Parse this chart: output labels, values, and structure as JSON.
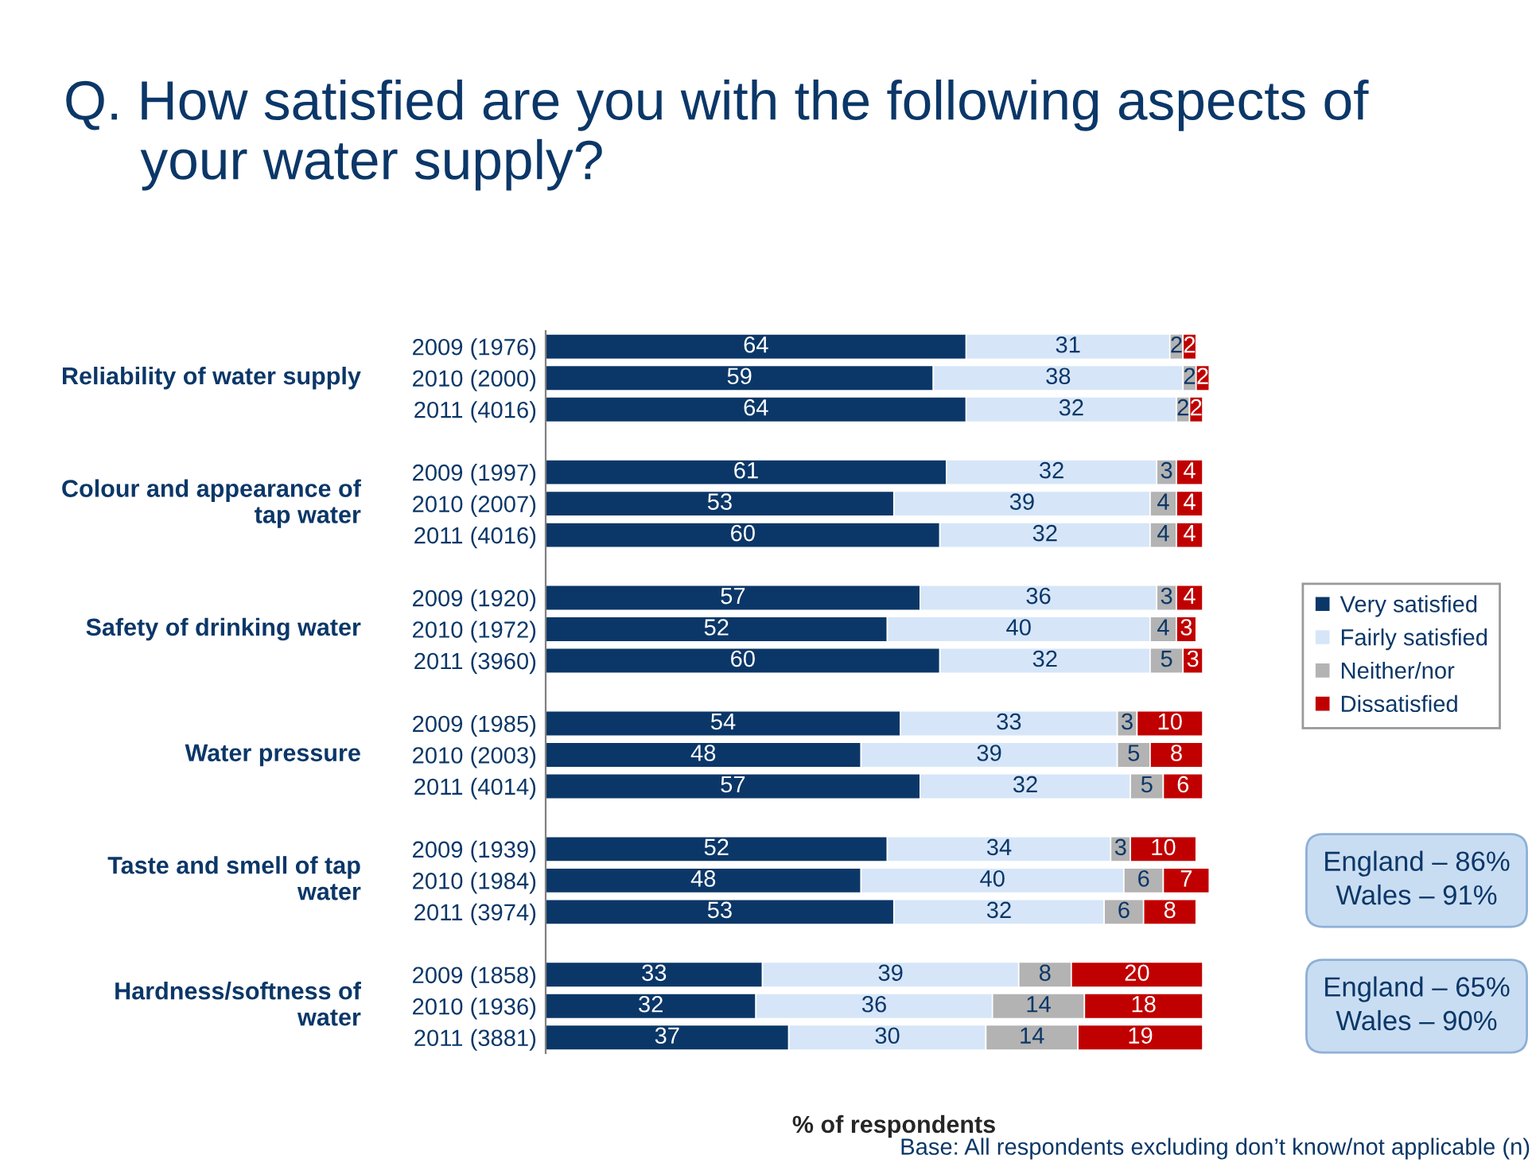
{
  "chart_data": {
    "type": "bar",
    "orientation": "horizontal",
    "stacked": true,
    "data_labels": true,
    "grid": false,
    "legend": "right",
    "title": "Q. How satisfied are you with the following aspects of\n     your water supply?",
    "xlabel": "% of respondents",
    "categories": [
      "2009 (1976)",
      "2010 (2000)",
      "2011 (4016)",
      null,
      "2009 (1997)",
      "2010 (2007)",
      "2011 (4016)",
      null,
      "2009 (1920)",
      "2010 (1972)",
      "2011 (3960)",
      null,
      "2009 (1985)",
      "2010 (2003)",
      "2011 (4014)",
      null,
      "2009 (1939)",
      "2010 (1984)",
      "2011 (3974)",
      null,
      "2009 (1858)",
      "2010 (1936)",
      "2011 (3881)"
    ],
    "series": [
      {
        "name": "Very satisfied",
        "color": "#0b3768",
        "values": [
          64,
          59,
          64,
          null,
          61,
          53,
          60,
          null,
          57,
          52,
          60,
          null,
          54,
          48,
          57,
          null,
          52,
          48,
          53,
          null,
          33,
          32,
          37
        ]
      },
      {
        "name": "Fairly satisfied",
        "color": "#d6e6f8",
        "values": [
          31,
          38,
          32,
          null,
          32,
          39,
          32,
          null,
          36,
          40,
          32,
          null,
          33,
          39,
          32,
          null,
          34,
          40,
          32,
          null,
          39,
          36,
          30
        ]
      },
      {
        "name": "Neither/nor",
        "color": "#b3b3b3",
        "values": [
          2,
          2,
          2,
          null,
          3,
          4,
          4,
          null,
          3,
          4,
          5,
          null,
          3,
          5,
          5,
          null,
          3,
          6,
          6,
          null,
          8,
          14,
          14
        ]
      },
      {
        "name": "Dissatisfied",
        "color": "#c00000",
        "values": [
          2,
          2,
          2,
          null,
          4,
          4,
          4,
          null,
          4,
          3,
          3,
          null,
          10,
          8,
          6,
          null,
          10,
          7,
          8,
          null,
          20,
          18,
          19
        ]
      }
    ],
    "annotations": [
      "Reliability of water supply",
      "Colour and appearance of\ntap water",
      "Safety of drinking water",
      "Water pressure",
      "Taste and smell of tap\nwater",
      "Hardness/softness of\nwater",
      "England – 86%\nWales – 91%",
      "England – 65%\nWales – 90%",
      "Base: All respondents excluding don’t know/not applicable (n)"
    ]
  }
}
